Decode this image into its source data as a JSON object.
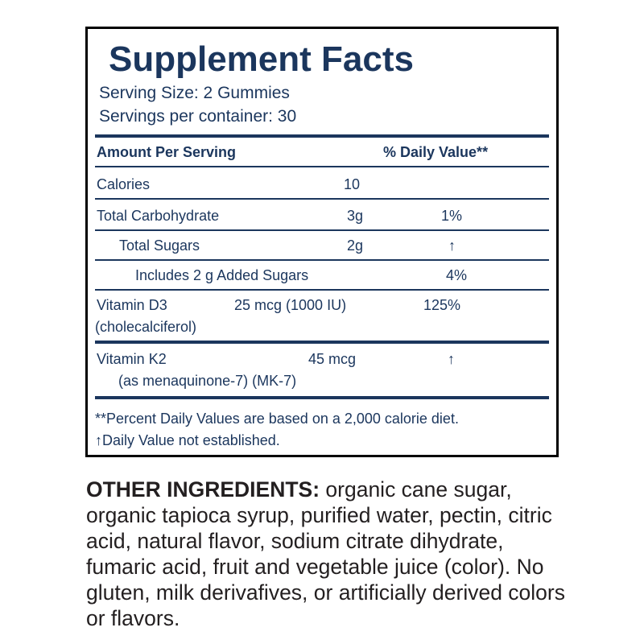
{
  "panel": {
    "title": "Supplement Facts",
    "serving_size": "Serving Size: 2 Gummies",
    "servings_per_container": "Servings per container: 30",
    "header": {
      "amount": "Amount Per Serving",
      "dv": "% Daily Value**"
    },
    "rows": [
      {
        "name": "Calories",
        "amount": "10",
        "dv": ""
      },
      {
        "name": "Total Carbohydrate",
        "amount": "3g",
        "dv": "1%"
      },
      {
        "name": "Total Sugars",
        "amount": "2g",
        "dv": "↑"
      },
      {
        "name": "Includes 2 g Added Sugars",
        "amount": "",
        "dv": "4%"
      },
      {
        "name": "Vitamin D3",
        "sub": "(cholecalciferol)",
        "amount": "25 mcg (1000 IU)",
        "dv": "125%"
      },
      {
        "name": "Vitamin K2",
        "sub": "(as menaquinone-7) (MK-7)",
        "amount": "45 mcg",
        "dv": "↑"
      }
    ],
    "footnote1": "**Percent Daily Values are based on a 2,000 calorie diet.",
    "footnote2": "↑Daily Value not established."
  },
  "ingredients": {
    "label": "OTHER INGREDIENTS:",
    "text": " organic cane sugar, organic tapioca syrup, purified water, pectin, citric acid, natural flavor, sodium citrate dihydrate, fumaric acid, fruit and vegetable juice (color). No gluten, milk derivafives, or artificially derived colors or flavors."
  },
  "colors": {
    "navy": "#1b365d",
    "text": "#231f20"
  }
}
